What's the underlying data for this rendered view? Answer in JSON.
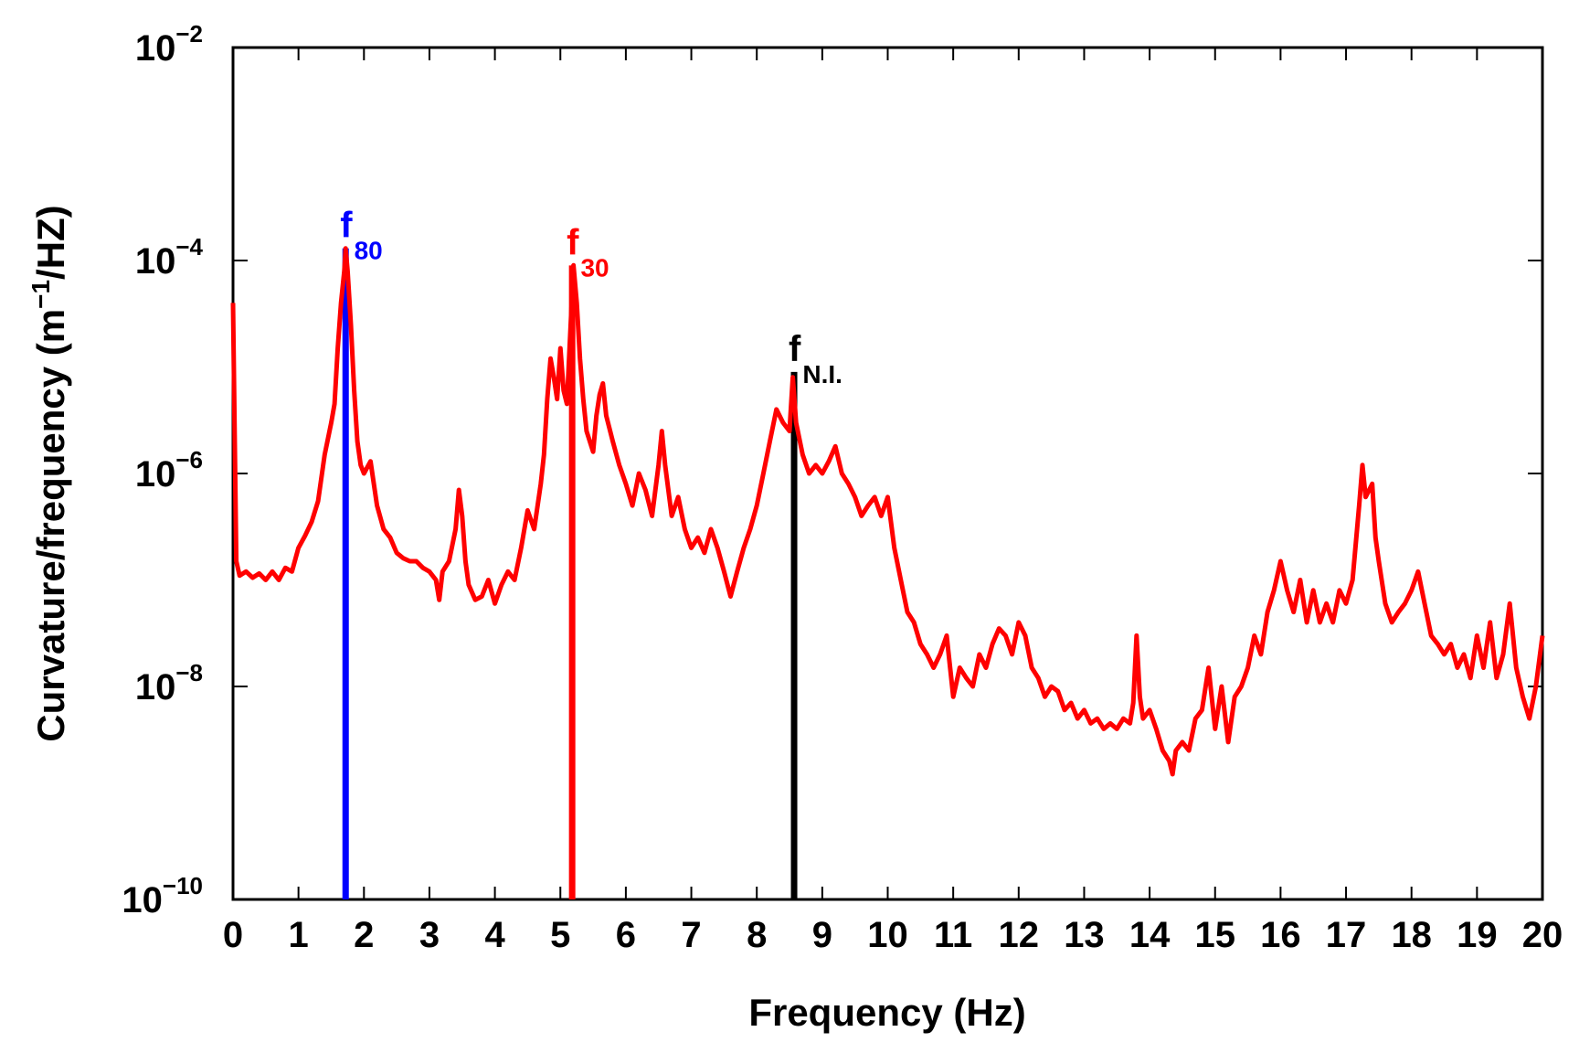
{
  "chart_data": {
    "type": "line",
    "xlabel": "Frequency (Hz)",
    "ylabel_parts": {
      "main": "Curvature/frequency (m",
      "sup": "−1",
      "tail": "/HZ)"
    },
    "xlim": [
      0,
      20
    ],
    "ylim": [
      1e-10,
      0.01
    ],
    "yscale": "log",
    "grid": false,
    "x_ticks": [
      "0",
      "1",
      "2",
      "3",
      "4",
      "5",
      "6",
      "7",
      "8",
      "9",
      "10",
      "11",
      "12",
      "13",
      "14",
      "15",
      "16",
      "17",
      "18",
      "19",
      "20"
    ],
    "y_ticks": [
      {
        "value": 1e-10,
        "base": "10",
        "exp": "−10"
      },
      {
        "value": 1e-08,
        "base": "10",
        "exp": "−8"
      },
      {
        "value": 1e-06,
        "base": "10",
        "exp": "−6"
      },
      {
        "value": 0.0001,
        "base": "10",
        "exp": "−4"
      },
      {
        "value": 0.01,
        "base": "10",
        "exp": "−2"
      }
    ],
    "series": [
      {
        "color": "#ff0000",
        "points": [
          [
            0.0,
            4e-05
          ],
          [
            0.05,
            1.5e-07
          ],
          [
            0.1,
            1.1e-07
          ],
          [
            0.2,
            1.2e-07
          ],
          [
            0.3,
            1.05e-07
          ],
          [
            0.4,
            1.15e-07
          ],
          [
            0.5,
            1e-07
          ],
          [
            0.6,
            1.2e-07
          ],
          [
            0.7,
            1e-07
          ],
          [
            0.8,
            1.3e-07
          ],
          [
            0.9,
            1.2e-07
          ],
          [
            1.0,
            2e-07
          ],
          [
            1.1,
            2.6e-07
          ],
          [
            1.2,
            3.5e-07
          ],
          [
            1.3,
            5.5e-07
          ],
          [
            1.4,
            1.5e-06
          ],
          [
            1.5,
            3e-06
          ],
          [
            1.55,
            4.5e-06
          ],
          [
            1.6,
            1.5e-05
          ],
          [
            1.65,
            4e-05
          ],
          [
            1.7,
            8e-05
          ],
          [
            1.72,
            0.00013
          ],
          [
            1.75,
            8e-05
          ],
          [
            1.8,
            2.5e-05
          ],
          [
            1.85,
            6e-06
          ],
          [
            1.9,
            2e-06
          ],
          [
            1.95,
            1.2e-06
          ],
          [
            2.0,
            1e-06
          ],
          [
            2.1,
            1.3e-06
          ],
          [
            2.2,
            5e-07
          ],
          [
            2.3,
            3e-07
          ],
          [
            2.4,
            2.5e-07
          ],
          [
            2.5,
            1.8e-07
          ],
          [
            2.6,
            1.6e-07
          ],
          [
            2.7,
            1.5e-07
          ],
          [
            2.8,
            1.5e-07
          ],
          [
            2.9,
            1.3e-07
          ],
          [
            3.0,
            1.2e-07
          ],
          [
            3.1,
            1e-07
          ],
          [
            3.15,
            6.5e-08
          ],
          [
            3.2,
            1.2e-07
          ],
          [
            3.3,
            1.5e-07
          ],
          [
            3.4,
            3e-07
          ],
          [
            3.45,
            7e-07
          ],
          [
            3.5,
            4e-07
          ],
          [
            3.55,
            1.5e-07
          ],
          [
            3.6,
            9e-08
          ],
          [
            3.7,
            6.5e-08
          ],
          [
            3.8,
            7e-08
          ],
          [
            3.9,
            1e-07
          ],
          [
            4.0,
            6e-08
          ],
          [
            4.1,
            9e-08
          ],
          [
            4.2,
            1.2e-07
          ],
          [
            4.3,
            1e-07
          ],
          [
            4.4,
            2e-07
          ],
          [
            4.5,
            4.5e-07
          ],
          [
            4.6,
            3e-07
          ],
          [
            4.7,
            8e-07
          ],
          [
            4.75,
            1.5e-06
          ],
          [
            4.8,
            5e-06
          ],
          [
            4.85,
            1.2e-05
          ],
          [
            4.9,
            8e-06
          ],
          [
            4.95,
            5e-06
          ],
          [
            5.0,
            1.5e-05
          ],
          [
            5.05,
            6e-06
          ],
          [
            5.1,
            4.5e-06
          ],
          [
            5.15,
            2e-05
          ],
          [
            5.2,
            9e-05
          ],
          [
            5.25,
            4e-05
          ],
          [
            5.3,
            1.2e-05
          ],
          [
            5.35,
            5e-06
          ],
          [
            5.4,
            2.5e-06
          ],
          [
            5.5,
            1.6e-06
          ],
          [
            5.55,
            3.5e-06
          ],
          [
            5.6,
            5.5e-06
          ],
          [
            5.65,
            7e-06
          ],
          [
            5.7,
            3.5e-06
          ],
          [
            5.8,
            2e-06
          ],
          [
            5.9,
            1.2e-06
          ],
          [
            6.0,
            8e-07
          ],
          [
            6.1,
            5e-07
          ],
          [
            6.2,
            1e-06
          ],
          [
            6.3,
            7e-07
          ],
          [
            6.4,
            4e-07
          ],
          [
            6.5,
            1.2e-06
          ],
          [
            6.55,
            2.5e-06
          ],
          [
            6.6,
            1.2e-06
          ],
          [
            6.7,
            4e-07
          ],
          [
            6.8,
            6e-07
          ],
          [
            6.9,
            3e-07
          ],
          [
            7.0,
            2e-07
          ],
          [
            7.1,
            2.5e-07
          ],
          [
            7.2,
            1.8e-07
          ],
          [
            7.3,
            3e-07
          ],
          [
            7.4,
            2e-07
          ],
          [
            7.5,
            1.2e-07
          ],
          [
            7.6,
            7e-08
          ],
          [
            7.7,
            1.2e-07
          ],
          [
            7.8,
            2e-07
          ],
          [
            7.9,
            3e-07
          ],
          [
            8.0,
            5e-07
          ],
          [
            8.1,
            1e-06
          ],
          [
            8.2,
            2e-06
          ],
          [
            8.3,
            4e-06
          ],
          [
            8.4,
            3e-06
          ],
          [
            8.5,
            2.5e-06
          ],
          [
            8.55,
            8e-06
          ],
          [
            8.6,
            3e-06
          ],
          [
            8.7,
            1.5e-06
          ],
          [
            8.8,
            1e-06
          ],
          [
            8.9,
            1.2e-06
          ],
          [
            9.0,
            1e-06
          ],
          [
            9.1,
            1.3e-06
          ],
          [
            9.2,
            1.8e-06
          ],
          [
            9.3,
            1e-06
          ],
          [
            9.4,
            8e-07
          ],
          [
            9.5,
            6e-07
          ],
          [
            9.6,
            4e-07
          ],
          [
            9.7,
            5e-07
          ],
          [
            9.8,
            6e-07
          ],
          [
            9.9,
            4e-07
          ],
          [
            10.0,
            6e-07
          ],
          [
            10.1,
            2e-07
          ],
          [
            10.2,
            1e-07
          ],
          [
            10.3,
            5e-08
          ],
          [
            10.4,
            4e-08
          ],
          [
            10.5,
            2.5e-08
          ],
          [
            10.6,
            2e-08
          ],
          [
            10.7,
            1.5e-08
          ],
          [
            10.8,
            2e-08
          ],
          [
            10.9,
            3e-08
          ],
          [
            11.0,
            8e-09
          ],
          [
            11.1,
            1.5e-08
          ],
          [
            11.2,
            1.2e-08
          ],
          [
            11.3,
            1e-08
          ],
          [
            11.4,
            2e-08
          ],
          [
            11.5,
            1.5e-08
          ],
          [
            11.6,
            2.5e-08
          ],
          [
            11.7,
            3.5e-08
          ],
          [
            11.8,
            3e-08
          ],
          [
            11.9,
            2e-08
          ],
          [
            12.0,
            4e-08
          ],
          [
            12.1,
            3e-08
          ],
          [
            12.2,
            1.5e-08
          ],
          [
            12.3,
            1.2e-08
          ],
          [
            12.4,
            8e-09
          ],
          [
            12.5,
            1e-08
          ],
          [
            12.6,
            9e-09
          ],
          [
            12.7,
            6e-09
          ],
          [
            12.8,
            7e-09
          ],
          [
            12.9,
            5e-09
          ],
          [
            13.0,
            6e-09
          ],
          [
            13.1,
            4.5e-09
          ],
          [
            13.2,
            5e-09
          ],
          [
            13.3,
            4e-09
          ],
          [
            13.4,
            4.5e-09
          ],
          [
            13.5,
            4e-09
          ],
          [
            13.6,
            5e-09
          ],
          [
            13.7,
            4.5e-09
          ],
          [
            13.75,
            7e-09
          ],
          [
            13.8,
            3e-08
          ],
          [
            13.85,
            8e-09
          ],
          [
            13.9,
            5e-09
          ],
          [
            14.0,
            6e-09
          ],
          [
            14.1,
            4e-09
          ],
          [
            14.2,
            2.5e-09
          ],
          [
            14.3,
            2e-09
          ],
          [
            14.35,
            1.5e-09
          ],
          [
            14.4,
            2.5e-09
          ],
          [
            14.5,
            3e-09
          ],
          [
            14.6,
            2.5e-09
          ],
          [
            14.7,
            5e-09
          ],
          [
            14.8,
            6e-09
          ],
          [
            14.9,
            1.5e-08
          ],
          [
            15.0,
            4e-09
          ],
          [
            15.1,
            1e-08
          ],
          [
            15.2,
            3e-09
          ],
          [
            15.3,
            8e-09
          ],
          [
            15.4,
            1e-08
          ],
          [
            15.5,
            1.5e-08
          ],
          [
            15.6,
            3e-08
          ],
          [
            15.7,
            2e-08
          ],
          [
            15.8,
            5e-08
          ],
          [
            15.9,
            8e-08
          ],
          [
            16.0,
            1.5e-07
          ],
          [
            16.1,
            8e-08
          ],
          [
            16.2,
            5e-08
          ],
          [
            16.3,
            1e-07
          ],
          [
            16.4,
            4e-08
          ],
          [
            16.5,
            8e-08
          ],
          [
            16.6,
            4e-08
          ],
          [
            16.7,
            6e-08
          ],
          [
            16.8,
            4e-08
          ],
          [
            16.9,
            8e-08
          ],
          [
            17.0,
            6e-08
          ],
          [
            17.1,
            1e-07
          ],
          [
            17.2,
            5e-07
          ],
          [
            17.25,
            1.2e-06
          ],
          [
            17.3,
            6e-07
          ],
          [
            17.4,
            8e-07
          ],
          [
            17.45,
            2.5e-07
          ],
          [
            17.5,
            1.5e-07
          ],
          [
            17.6,
            6e-08
          ],
          [
            17.7,
            4e-08
          ],
          [
            17.8,
            5e-08
          ],
          [
            17.9,
            6e-08
          ],
          [
            18.0,
            8e-08
          ],
          [
            18.1,
            1.2e-07
          ],
          [
            18.2,
            6e-08
          ],
          [
            18.3,
            3e-08
          ],
          [
            18.4,
            2.5e-08
          ],
          [
            18.5,
            2e-08
          ],
          [
            18.6,
            2.5e-08
          ],
          [
            18.7,
            1.5e-08
          ],
          [
            18.8,
            2e-08
          ],
          [
            18.9,
            1.2e-08
          ],
          [
            19.0,
            3e-08
          ],
          [
            19.1,
            1.5e-08
          ],
          [
            19.2,
            4e-08
          ],
          [
            19.3,
            1.2e-08
          ],
          [
            19.4,
            2e-08
          ],
          [
            19.5,
            6e-08
          ],
          [
            19.6,
            1.5e-08
          ],
          [
            19.7,
            8e-09
          ],
          [
            19.8,
            5e-09
          ],
          [
            19.9,
            1e-08
          ],
          [
            20.0,
            3e-08
          ]
        ]
      }
    ],
    "stems": [
      {
        "x": 1.72,
        "top": 0.00013,
        "color": "#0000ff"
      },
      {
        "x": 5.18,
        "top": 9e-05,
        "color": "#ff0000"
      },
      {
        "x": 8.57,
        "top": 9e-06,
        "color": "#000000"
      }
    ],
    "annotations": [
      {
        "x": 1.72,
        "y": 0.00013,
        "main": "f",
        "sub": "80",
        "color": "#0000ff"
      },
      {
        "x": 5.18,
        "y": 9e-05,
        "main": "f",
        "sub": "30",
        "color": "#ff0000"
      },
      {
        "x": 8.57,
        "y": 9e-06,
        "main": "f",
        "sub": "N.I.",
        "color": "#000000"
      }
    ]
  }
}
